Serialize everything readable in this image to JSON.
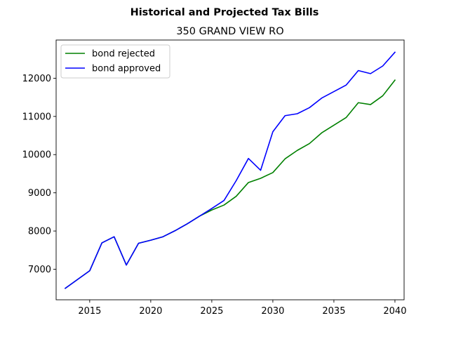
{
  "chart_data": {
    "type": "line",
    "title": "Historical and Projected Tax Bills",
    "subtitle": "350 GRAND VIEW RO",
    "xlabel": "",
    "ylabel": "",
    "xlim": [
      2012.25,
      2040.75
    ],
    "ylim": [
      6200,
      13000
    ],
    "xticks": [
      2015,
      2020,
      2025,
      2030,
      2035,
      2040
    ],
    "yticks": [
      7000,
      8000,
      9000,
      10000,
      11000,
      12000
    ],
    "grid": false,
    "legend_position": "top-left",
    "x": [
      2013,
      2014,
      2015,
      2016,
      2017,
      2018,
      2019,
      2020,
      2021,
      2022,
      2023,
      2024,
      2025,
      2026,
      2027,
      2028,
      2029,
      2030,
      2031,
      2032,
      2033,
      2034,
      2035,
      2036,
      2037,
      2038,
      2039,
      2040
    ],
    "series": [
      {
        "name": "bond rejected",
        "color": "#008000",
        "values": [
          6500,
          6730,
          6960,
          7690,
          7850,
          7110,
          7680,
          7760,
          7850,
          8010,
          8190,
          8390,
          8550,
          8680,
          8910,
          9270,
          9380,
          9530,
          9890,
          10110,
          10290,
          10570,
          10770,
          10970,
          11360,
          11310,
          11540,
          11950
        ]
      },
      {
        "name": "bond approved",
        "color": "#0000ff",
        "values": [
          6500,
          6730,
          6960,
          7690,
          7850,
          7110,
          7680,
          7760,
          7850,
          8010,
          8190,
          8390,
          8590,
          8800,
          9320,
          9900,
          9590,
          10600,
          11020,
          11070,
          11230,
          11480,
          11650,
          11820,
          12200,
          12120,
          12320,
          12680
        ]
      }
    ]
  }
}
